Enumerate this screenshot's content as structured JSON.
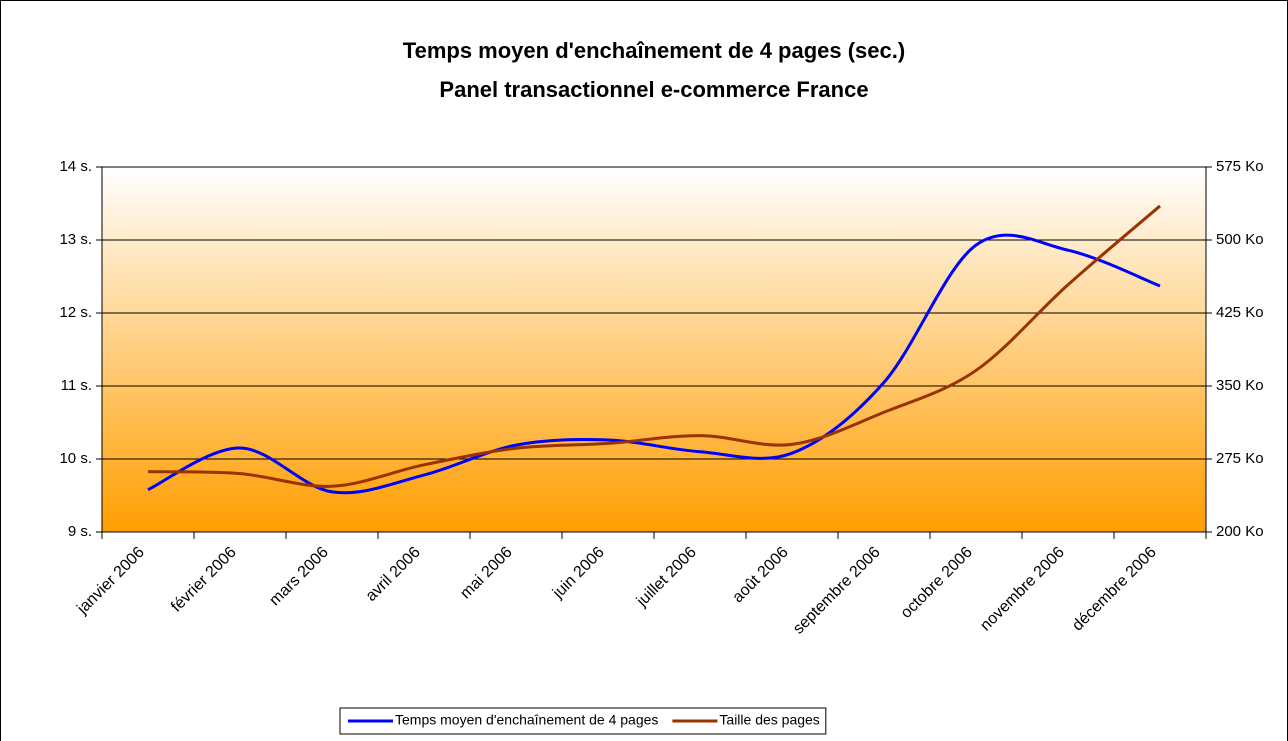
{
  "chart_data": {
    "type": "line",
    "title": "Temps moyen d'enchaînement de 4 pages (sec.)",
    "subtitle": "Panel transactionnel e-commerce France",
    "categories": [
      "janvier 2006",
      "février 2006",
      "mars 2006",
      "avril 2006",
      "mai 2006",
      "juin 2006",
      "juillet 2006",
      "août 2006",
      "septembre 2006",
      "octobre 2006",
      "novembre 2006",
      "décembre 2006"
    ],
    "series": [
      {
        "name": "Temps moyen d'enchaînement de 4 pages",
        "color": "#0000ff",
        "values": [
          9.58,
          10.15,
          9.55,
          9.78,
          10.19,
          10.26,
          10.1,
          10.08,
          11.05,
          12.93,
          12.86,
          12.37
        ]
      },
      {
        "name": "Taille des pages",
        "color": "#993300",
        "axis": "y2",
        "values": [
          262,
          260,
          247,
          269,
          286,
          291,
          299,
          290,
          323,
          366,
          454,
          535
        ]
      }
    ],
    "ylim": [
      9,
      14
    ],
    "yticks": [
      {
        "value": 9,
        "label": "9 s."
      },
      {
        "value": 10,
        "label": "10 s."
      },
      {
        "value": 11,
        "label": "11 s."
      },
      {
        "value": 12,
        "label": "12 s."
      },
      {
        "value": 13,
        "label": "13 s."
      },
      {
        "value": 14,
        "label": "14 s."
      }
    ],
    "y2lim": [
      200,
      575
    ],
    "y2ticks": [
      {
        "value": 200,
        "label": "200 Ko"
      },
      {
        "value": 275,
        "label": "275 Ko"
      },
      {
        "value": 350,
        "label": "350 Ko"
      },
      {
        "value": 425,
        "label": "425 Ko"
      },
      {
        "value": 500,
        "label": "500 Ko"
      },
      {
        "value": 575,
        "label": "575 Ko"
      }
    ],
    "grid": true,
    "smooth": true,
    "legend": "bottom"
  }
}
